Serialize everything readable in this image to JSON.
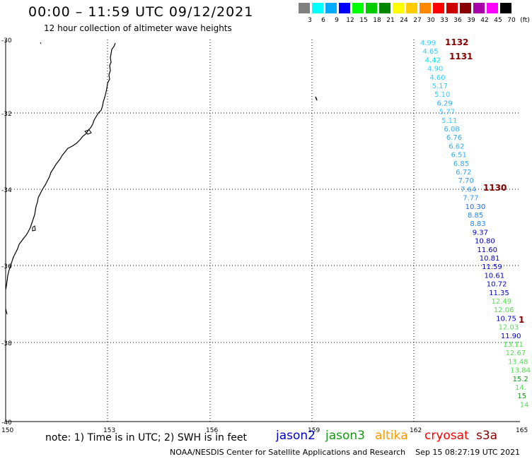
{
  "header": {
    "title": "00:00 – 11:59 UTC 09/12/2021",
    "subtitle": "12 hour collection of altimeter wave heights"
  },
  "color_scale": {
    "labels": [
      "3",
      "6",
      "9",
      "12",
      "15",
      "18",
      "21",
      "24",
      "27",
      "30",
      "33",
      "36",
      "39",
      "42",
      "45",
      "70",
      "(ft)"
    ],
    "colors": [
      "#808080",
      "#00ffff",
      "#00aaff",
      "#0000ff",
      "#00ff00",
      "#00cc00",
      "#008800",
      "#ffff00",
      "#ffcc00",
      "#ff8800",
      "#ff0000",
      "#cc0000",
      "#880000",
      "#aa00aa",
      "#ff00ff",
      "#000000"
    ]
  },
  "axes": {
    "lat_labels": [
      "-30",
      "-32",
      "-34",
      "-36",
      "-38",
      "-40"
    ],
    "lon_labels": [
      "150",
      "153",
      "156",
      "159",
      "162",
      "165"
    ]
  },
  "wave_readings": [
    {
      "v": "4.99",
      "c": "#33ccff"
    },
    {
      "v": "4.65",
      "c": "#33ccff"
    },
    {
      "v": "4.42",
      "c": "#00e6e6"
    },
    {
      "v": "4.90",
      "c": "#33ccff"
    },
    {
      "v": "4.60",
      "c": "#33ccff"
    },
    {
      "v": "5.17",
      "c": "#33ccff"
    },
    {
      "v": "5.10",
      "c": "#33ccff"
    },
    {
      "v": "6.29",
      "c": "#33aaee"
    },
    {
      "v": "5.77",
      "c": "#33ccff"
    },
    {
      "v": "5.11",
      "c": "#33ccff"
    },
    {
      "v": "6.08",
      "c": "#33aaee"
    },
    {
      "v": "6.76",
      "c": "#33aaee"
    },
    {
      "v": "6.62",
      "c": "#33aaee"
    },
    {
      "v": "6.51",
      "c": "#33aaee"
    },
    {
      "v": "6.85",
      "c": "#33aaee"
    },
    {
      "v": "6.72",
      "c": "#33aaee"
    },
    {
      "v": "7.70",
      "c": "#3399ee"
    },
    {
      "v": "7.64",
      "c": "#3399ee"
    },
    {
      "v": "7.77",
      "c": "#3399ee"
    },
    {
      "v": "10.30",
      "c": "#2266dd"
    },
    {
      "v": "8.85",
      "c": "#2288ee"
    },
    {
      "v": "8.83",
      "c": "#2288ee"
    },
    {
      "v": "9.37",
      "c": "#0000cc"
    },
    {
      "v": "10.80",
      "c": "#0000cc"
    },
    {
      "v": "11.60",
      "c": "#0000cc"
    },
    {
      "v": "10.81",
      "c": "#0000cc"
    },
    {
      "v": "11.59",
      "c": "#0000cc"
    },
    {
      "v": "10.61",
      "c": "#0000cc"
    },
    {
      "v": "10.72",
      "c": "#0000cc"
    },
    {
      "v": "11.35",
      "c": "#0000cc"
    },
    {
      "v": "12.49",
      "c": "#55dd55"
    },
    {
      "v": "12.06",
      "c": "#55dd55"
    },
    {
      "v": "10.75",
      "c": "#0000cc"
    },
    {
      "v": "12.03",
      "c": "#55dd55"
    },
    {
      "v": "11.90",
      "c": "#0000cc"
    },
    {
      "v": "13.11",
      "c": "#55dd55"
    },
    {
      "v": "12.67",
      "c": "#55dd55"
    },
    {
      "v": "13.48",
      "c": "#55dd55"
    },
    {
      "v": "13.84",
      "c": "#55dd55"
    },
    {
      "v": "15.2",
      "c": "#119911"
    },
    {
      "v": "14.",
      "c": "#55dd55"
    },
    {
      "v": "15",
      "c": "#119911"
    },
    {
      "v": "14",
      "c": "#55dd55"
    }
  ],
  "time_labels": [
    "1132",
    "1131",
    "1130",
    "1"
  ],
  "footer": {
    "note": "note: 1) Time is in UTC; 2) SWH is in feet",
    "satellites": [
      {
        "name": "jason2",
        "color": "#0000cc"
      },
      {
        "name": "jason3",
        "color": "#119911"
      },
      {
        "name": "altika",
        "color": "#ff9900"
      },
      {
        "name": "cryosat",
        "color": "#ff0000"
      },
      {
        "name": "s3a",
        "color": "#880000"
      }
    ],
    "credit": "NOAA/NESDIS Center for Satellite Applications and Research",
    "timestamp": "Sep 15 08:27:19 UTC 2021"
  }
}
